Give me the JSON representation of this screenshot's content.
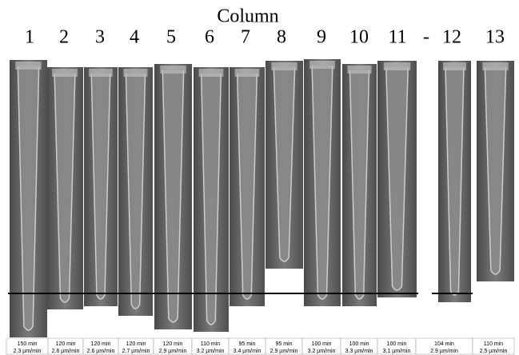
{
  "title": "Column",
  "separator": "-",
  "columns": [
    {
      "label": "1",
      "time": "150 min",
      "rate": "2.3 µm/min"
    },
    {
      "label": "2",
      "time": "120 min",
      "rate": "2.6 µm/min"
    },
    {
      "label": "3",
      "time": "120 min",
      "rate": "2.6 µm/min"
    },
    {
      "label": "4",
      "time": "120 min",
      "rate": "2.7 µm/min"
    },
    {
      "label": "5",
      "time": "120 min",
      "rate": "2.9 µm/min"
    },
    {
      "label": "6",
      "time": "110 min",
      "rate": "3.2 µm/min"
    },
    {
      "label": "7",
      "time": "95 min",
      "rate": "3.4 µm/min"
    },
    {
      "label": "8",
      "time": "95 min",
      "rate": "2.9 µm/min"
    },
    {
      "label": "9",
      "time": "100 min",
      "rate": "3.2 µm/min"
    },
    {
      "label": "10",
      "time": "100 min",
      "rate": "3.3 µm/min"
    },
    {
      "label": "11",
      "time": "100 min",
      "rate": "3.1 µm/min"
    },
    {
      "label": "12",
      "time": "104 min",
      "rate": "2.9 µm/min"
    },
    {
      "label": "13",
      "time": "110 min",
      "rate": "2.5 µm/min"
    }
  ]
}
